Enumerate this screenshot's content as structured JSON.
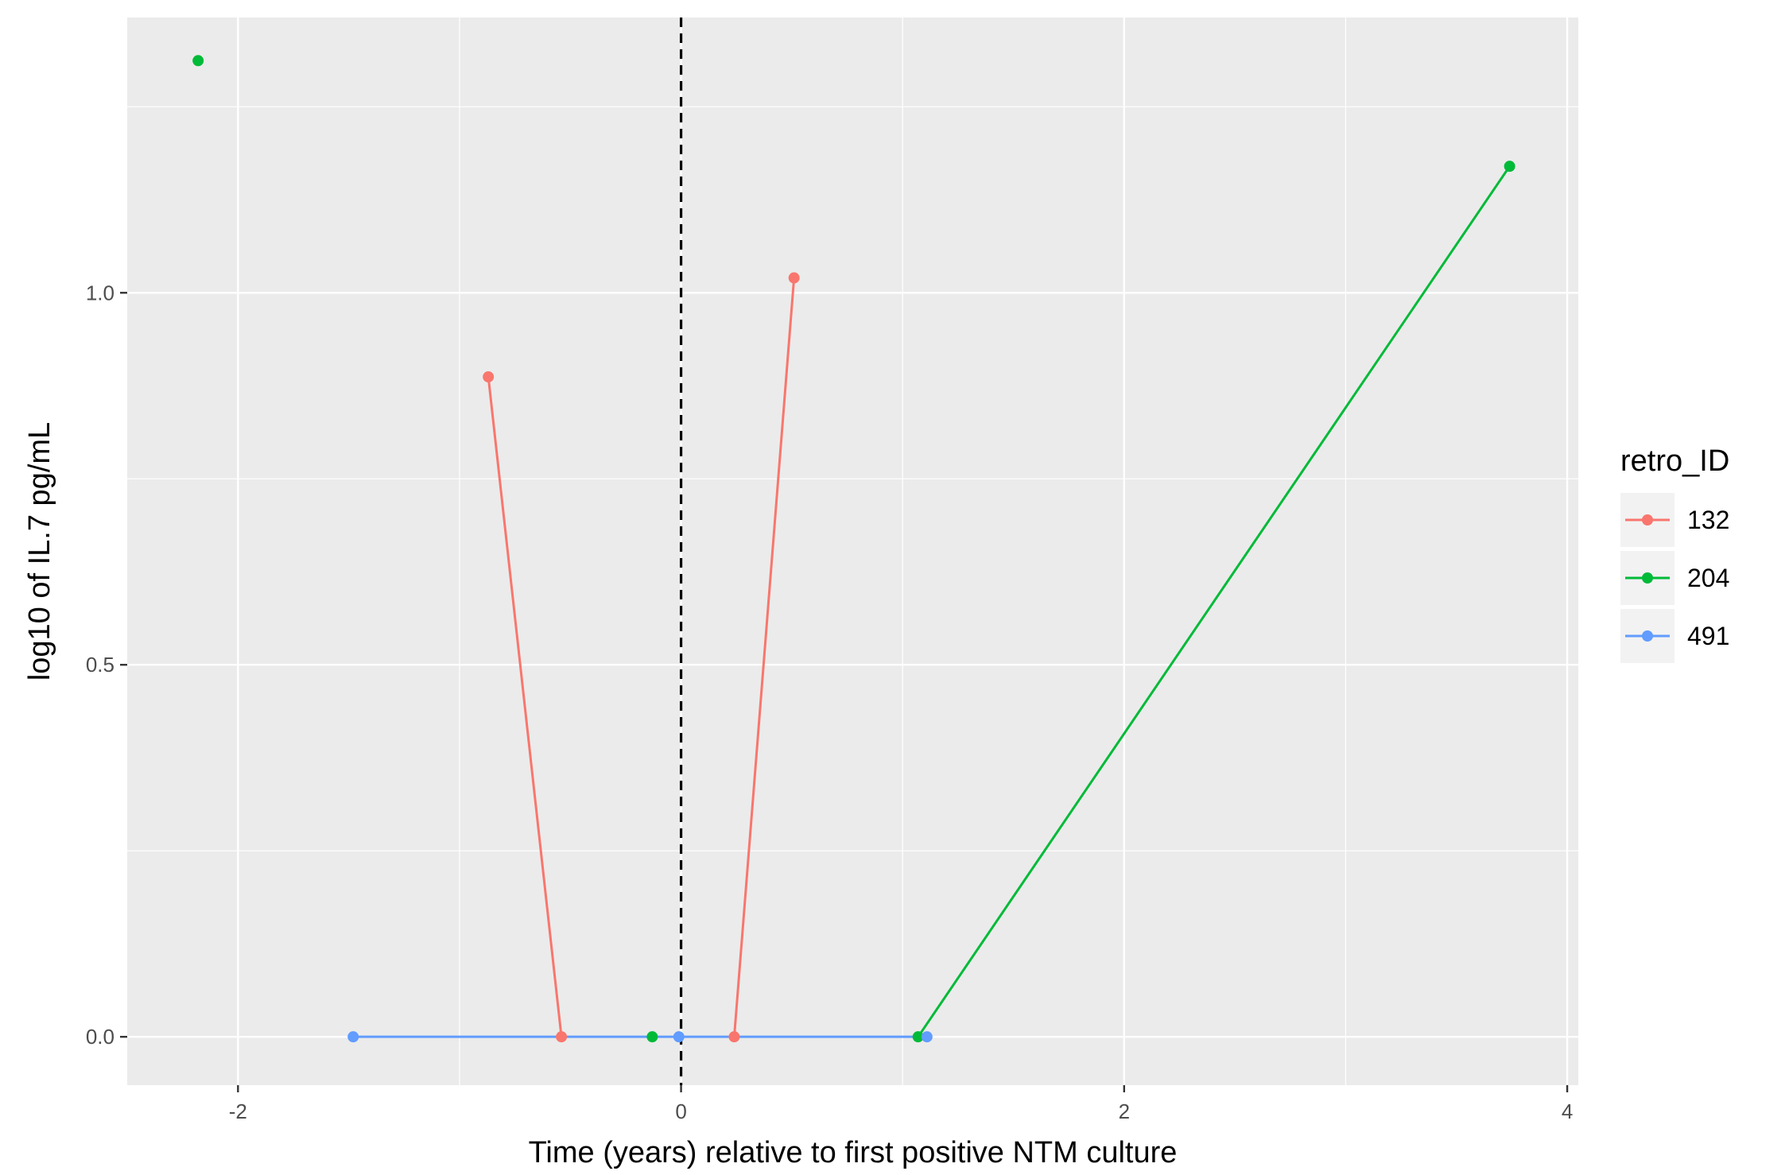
{
  "chart_data": {
    "type": "line",
    "xlabel": "Time (years) relative to first positive NTM culture",
    "ylabel": "log10 of IL.7 pg/mL",
    "xlim": [
      -2.5,
      4.05
    ],
    "ylim": [
      -0.065,
      1.37
    ],
    "x_ticks": [
      -2,
      0,
      2,
      4
    ],
    "y_ticks": [
      0.0,
      0.5,
      1.0
    ],
    "x_tick_labels": [
      "-2",
      "0",
      "2",
      "4"
    ],
    "y_tick_labels": [
      "0.0",
      "0.5",
      "1.0"
    ],
    "grid": true,
    "vline": {
      "x": 0,
      "style": "dashed",
      "color": "#000000"
    },
    "legend": {
      "title": "retro_ID",
      "position": "right"
    },
    "series": [
      {
        "name": "132",
        "color": "#F8766D",
        "points": [
          {
            "x": -0.87,
            "y": 0.887
          },
          {
            "x": -0.54,
            "y": 0.0
          },
          {
            "x": 0.24,
            "y": 0.0
          },
          {
            "x": 0.51,
            "y": 1.02
          }
        ],
        "segments": [
          [
            0,
            1
          ],
          [
            2,
            3
          ]
        ]
      },
      {
        "name": "204",
        "color": "#00BA38",
        "points": [
          {
            "x": -2.18,
            "y": 1.312
          },
          {
            "x": -0.13,
            "y": 0.0
          },
          {
            "x": 1.07,
            "y": 0.0
          },
          {
            "x": 3.74,
            "y": 1.17
          }
        ],
        "segments": [
          [
            2,
            3
          ]
        ]
      },
      {
        "name": "491",
        "color": "#619CFF",
        "points": [
          {
            "x": -1.48,
            "y": 0.0
          },
          {
            "x": -0.01,
            "y": 0.0
          },
          {
            "x": 1.11,
            "y": 0.0
          }
        ],
        "segments": [
          [
            0,
            1
          ],
          [
            1,
            2
          ]
        ]
      }
    ]
  }
}
